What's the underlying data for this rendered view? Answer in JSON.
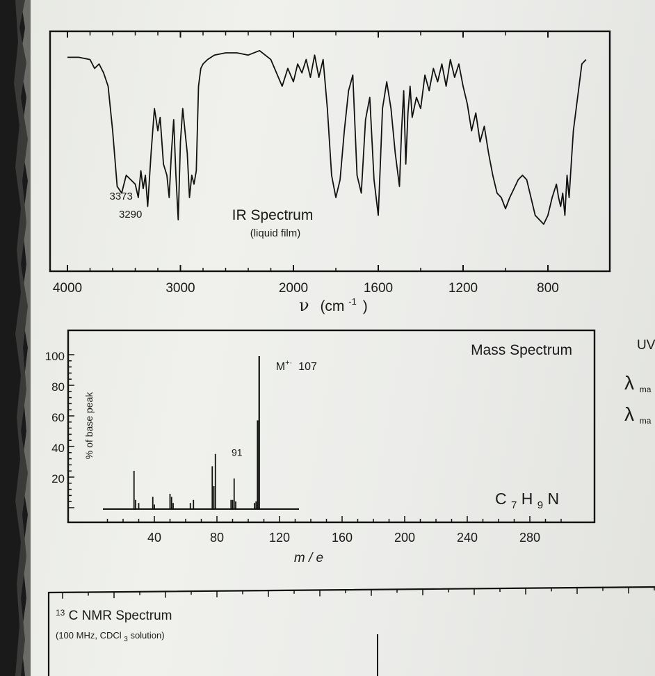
{
  "chart_data": [
    {
      "type": "line",
      "title": "IR Spectrum",
      "subtitle": "(liquid film)",
      "xlabel_symbol": "ν",
      "xlabel_unit": "(cm",
      "xlabel_exp": "-1",
      "xlabel_close": ")",
      "x_ticks": [
        {
          "value": 4000,
          "label": "4000"
        },
        {
          "value": 3000,
          "label": "3000"
        },
        {
          "value": 2000,
          "label": "2000"
        },
        {
          "value": 1600,
          "label": "1600"
        },
        {
          "value": 1200,
          "label": "1200"
        },
        {
          "value": 800,
          "label": "800"
        }
      ],
      "x_range": [
        4000,
        600
      ],
      "y_range": [
        0,
        100
      ],
      "annotations": [
        {
          "text": "3373",
          "x": 3373,
          "y": 34
        },
        {
          "text": "3290",
          "x": 3290,
          "y": 26
        }
      ],
      "series": [
        {
          "x": [
            4000,
            3900,
            3800,
            3760,
            3720,
            3680,
            3640,
            3600,
            3560,
            3520,
            3480,
            3440,
            3400,
            3373,
            3350,
            3330,
            3310,
            3290,
            3260,
            3230,
            3200,
            3180,
            3150,
            3120,
            3100,
            3080,
            3060,
            3040,
            3020,
            3000,
            2980,
            2960,
            2940,
            2920,
            2900,
            2880,
            2860,
            2840,
            2820,
            2800,
            2760,
            2700,
            2600,
            2500,
            2400,
            2300,
            2200,
            2100,
            2050,
            2000,
            1980,
            1960,
            1940,
            1920,
            1900,
            1880,
            1860,
            1840,
            1820,
            1800,
            1780,
            1760,
            1740,
            1720,
            1700,
            1680,
            1660,
            1640,
            1620,
            1600,
            1590,
            1580,
            1560,
            1540,
            1520,
            1500,
            1490,
            1480,
            1470,
            1460,
            1450,
            1440,
            1420,
            1400,
            1380,
            1360,
            1340,
            1320,
            1300,
            1280,
            1260,
            1240,
            1220,
            1200,
            1180,
            1160,
            1140,
            1120,
            1100,
            1080,
            1060,
            1040,
            1020,
            1000,
            980,
            960,
            940,
            920,
            900,
            880,
            860,
            840,
            820,
            800,
            780,
            760,
            750,
            740,
            730,
            720,
            710,
            700,
            690,
            680,
            660,
            640,
            620
          ],
          "y": [
            93,
            93,
            92,
            88,
            90,
            86,
            80,
            60,
            35,
            32,
            40,
            38,
            36,
            30,
            42,
            34,
            40,
            26,
            50,
            70,
            60,
            66,
            45,
            40,
            30,
            50,
            65,
            40,
            20,
            55,
            70,
            60,
            50,
            30,
            40,
            36,
            42,
            80,
            88,
            90,
            92,
            94,
            95,
            95,
            94,
            96,
            92,
            80,
            88,
            82,
            90,
            86,
            92,
            84,
            94,
            84,
            92,
            70,
            40,
            30,
            38,
            60,
            78,
            85,
            40,
            32,
            65,
            75,
            38,
            22,
            45,
            70,
            82,
            70,
            50,
            35,
            60,
            78,
            45,
            68,
            80,
            66,
            75,
            70,
            85,
            78,
            88,
            82,
            90,
            80,
            92,
            84,
            90,
            80,
            72,
            60,
            68,
            55,
            62,
            50,
            40,
            32,
            30,
            25,
            30,
            34,
            38,
            40,
            38,
            30,
            22,
            20,
            18,
            22,
            30,
            36,
            30,
            26,
            32,
            22,
            40,
            30,
            45,
            60,
            75,
            90,
            92
          ]
        }
      ]
    },
    {
      "type": "bar",
      "title": "Mass Spectrum",
      "ylabel": "% of base peak",
      "xlabel": "m / e",
      "formula_main": "C",
      "formula_sub1": "7",
      "formula_h": "H",
      "formula_sub2": "9",
      "formula_n": "N",
      "x_ticks": [
        {
          "value": 40,
          "label": "40"
        },
        {
          "value": 80,
          "label": "80"
        },
        {
          "value": 120,
          "label": "120"
        },
        {
          "value": 160,
          "label": "160"
        },
        {
          "value": 200,
          "label": "200"
        },
        {
          "value": 240,
          "label": "240"
        },
        {
          "value": 280,
          "label": "280"
        }
      ],
      "y_ticks": [
        {
          "value": 20,
          "label": "20"
        },
        {
          "value": 40,
          "label": "40"
        },
        {
          "value": 60,
          "label": "60"
        },
        {
          "value": 80,
          "label": "80"
        },
        {
          "value": 100,
          "label": "100"
        }
      ],
      "x_range": [
        0,
        310
      ],
      "y_range": [
        0,
        100
      ],
      "labels": [
        {
          "text": "M",
          "sup": "+·",
          "after": "107",
          "x": 107,
          "y": 100
        },
        {
          "text": "91",
          "x": 91,
          "y": 32
        }
      ],
      "peaks": [
        {
          "x": 27,
          "y": 25
        },
        {
          "x": 28,
          "y": 6
        },
        {
          "x": 30,
          "y": 4
        },
        {
          "x": 39,
          "y": 8
        },
        {
          "x": 40,
          "y": 3
        },
        {
          "x": 50,
          "y": 10
        },
        {
          "x": 51,
          "y": 8
        },
        {
          "x": 52,
          "y": 4
        },
        {
          "x": 63,
          "y": 4
        },
        {
          "x": 65,
          "y": 6
        },
        {
          "x": 77,
          "y": 28
        },
        {
          "x": 78,
          "y": 15
        },
        {
          "x": 79,
          "y": 36
        },
        {
          "x": 89,
          "y": 6
        },
        {
          "x": 90,
          "y": 6
        },
        {
          "x": 91,
          "y": 20
        },
        {
          "x": 92,
          "y": 5
        },
        {
          "x": 104,
          "y": 4
        },
        {
          "x": 105,
          "y": 5
        },
        {
          "x": 106,
          "y": 58
        },
        {
          "x": 107,
          "y": 100
        }
      ]
    },
    {
      "type": "line",
      "title_sup": "13",
      "title": "C NMR Spectrum",
      "subtitle_a": "(100 MHz, CDCl",
      "subtitle_sub": "3",
      "subtitle_b": " solution)"
    }
  ],
  "sidebar": {
    "uv_label": "UV",
    "lambda1": "λ",
    "lambda1_sub": "ma",
    "lambda2": "λ",
    "lambda2_sub": "ma"
  }
}
